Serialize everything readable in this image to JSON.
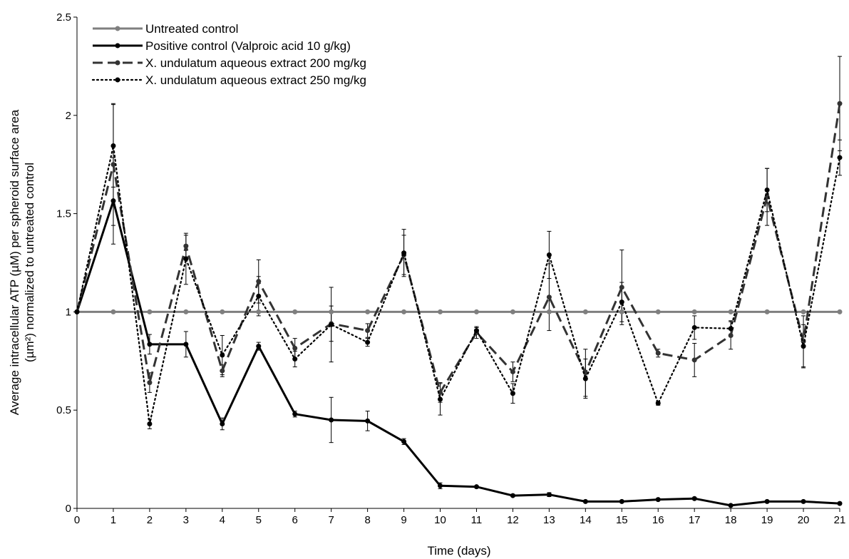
{
  "chart_data": {
    "type": "line",
    "xlabel": "Time (days)",
    "ylabel_line1": "Average intracellular ATP (µM) per spheroid surface area",
    "ylabel_line2": "(µm²) normalized to untreated control",
    "xlim": [
      0,
      21
    ],
    "ylim": [
      0,
      2.5
    ],
    "x_ticks": [
      "0",
      "1",
      "2",
      "3",
      "4",
      "5",
      "6",
      "7",
      "8",
      "9",
      "10",
      "11",
      "12",
      "13",
      "14",
      "15",
      "16",
      "17",
      "18",
      "19",
      "20",
      "21"
    ],
    "y_ticks": [
      "0",
      "0.5",
      "1",
      "1.5",
      "2",
      "2.5"
    ],
    "grid": false,
    "legend_position": "top-left",
    "x": [
      0,
      1,
      2,
      3,
      4,
      5,
      6,
      7,
      8,
      9,
      10,
      11,
      12,
      13,
      14,
      15,
      16,
      17,
      18,
      19,
      20,
      21
    ],
    "series": [
      {
        "name": "Untreated control",
        "color": "#7f7f7f",
        "dash": "solid",
        "values": [
          1,
          1,
          1,
          1,
          1,
          1,
          1,
          1,
          1,
          1,
          1,
          1,
          1,
          1,
          1,
          1,
          1,
          1,
          1,
          1,
          1,
          1
        ],
        "errors": [
          0,
          0,
          0,
          0,
          0,
          0,
          0,
          0,
          0,
          0,
          0,
          0,
          0,
          0,
          0,
          0,
          0,
          0,
          0,
          0,
          0,
          0
        ]
      },
      {
        "name": "Positive control (Valproic acid 10 g/kg)",
        "color": "#000000",
        "dash": "solid",
        "values": [
          1,
          1.565,
          0.835,
          0.835,
          0.43,
          0.825,
          0.48,
          0.45,
          0.445,
          0.34,
          0.115,
          0.11,
          0.065,
          0.07,
          0.035,
          0.035,
          0.045,
          0.05,
          0.015,
          0.035,
          0.035,
          0.025
        ],
        "errors": [
          0,
          0.22,
          0.05,
          0.065,
          0.03,
          0.02,
          0.015,
          0.115,
          0.05,
          0.015,
          0.015,
          0.005,
          0.005,
          0.01,
          0.005,
          0.005,
          0.005,
          0.005,
          0.005,
          0.005,
          0.005,
          0.005
        ]
      },
      {
        "name": "X. undulatum aqueous extract 200 mg/kg",
        "color": "#333333",
        "dash": "dashed",
        "values": [
          1,
          1.75,
          0.64,
          1.335,
          0.7,
          1.155,
          0.815,
          0.94,
          0.905,
          1.29,
          0.59,
          0.895,
          0.695,
          1.075,
          0.69,
          1.125,
          0.79,
          0.755,
          0.88,
          1.585,
          0.85,
          2.06
        ],
        "errors": [
          0,
          0.31,
          0.05,
          0.055,
          0.03,
          0.11,
          0.05,
          0.09,
          0.035,
          0.1,
          0.05,
          0.03,
          0.05,
          0.17,
          0.12,
          0.19,
          0.02,
          0.085,
          0.07,
          0.145,
          0.13,
          0.24
        ]
      },
      {
        "name": "X. undulatum aqueous extract 250 mg/kg",
        "color": "#000000",
        "dash": "dotted",
        "values": [
          1,
          1.845,
          0.43,
          1.27,
          0.78,
          1.08,
          0.76,
          0.935,
          0.845,
          1.3,
          0.555,
          0.905,
          0.585,
          1.29,
          0.66,
          1.05,
          0.535,
          0.92,
          0.915,
          1.62,
          0.825,
          1.785
        ],
        "errors": [
          0,
          0.21,
          0.025,
          0.13,
          0.1,
          0.1,
          0.04,
          0.19,
          0.02,
          0.12,
          0.08,
          0.015,
          0.05,
          0.12,
          0.1,
          0.1,
          0.01,
          0.06,
          0.04,
          0.11,
          0.11,
          0.09
        ]
      }
    ]
  }
}
